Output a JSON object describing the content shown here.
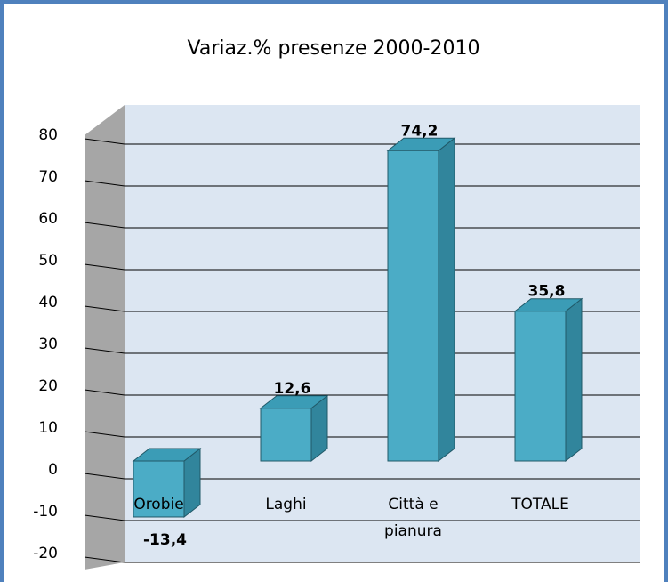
{
  "chart_data": {
    "type": "bar3d",
    "title": "Variaz.% presenze 2000-2010",
    "categories": [
      "Orobie",
      "Laghi",
      "Città e pianura",
      "TOTALE"
    ],
    "values": [
      -13.4,
      12.6,
      74.2,
      35.8
    ],
    "value_labels": [
      "-13,4",
      "12,6",
      "74,2",
      "35,8"
    ],
    "color": "#4bacc6",
    "ylim": [
      -20,
      80
    ],
    "yticks": [
      -20,
      -10,
      0,
      10,
      20,
      30,
      40,
      50,
      60,
      70,
      80
    ],
    "grid": true
  }
}
